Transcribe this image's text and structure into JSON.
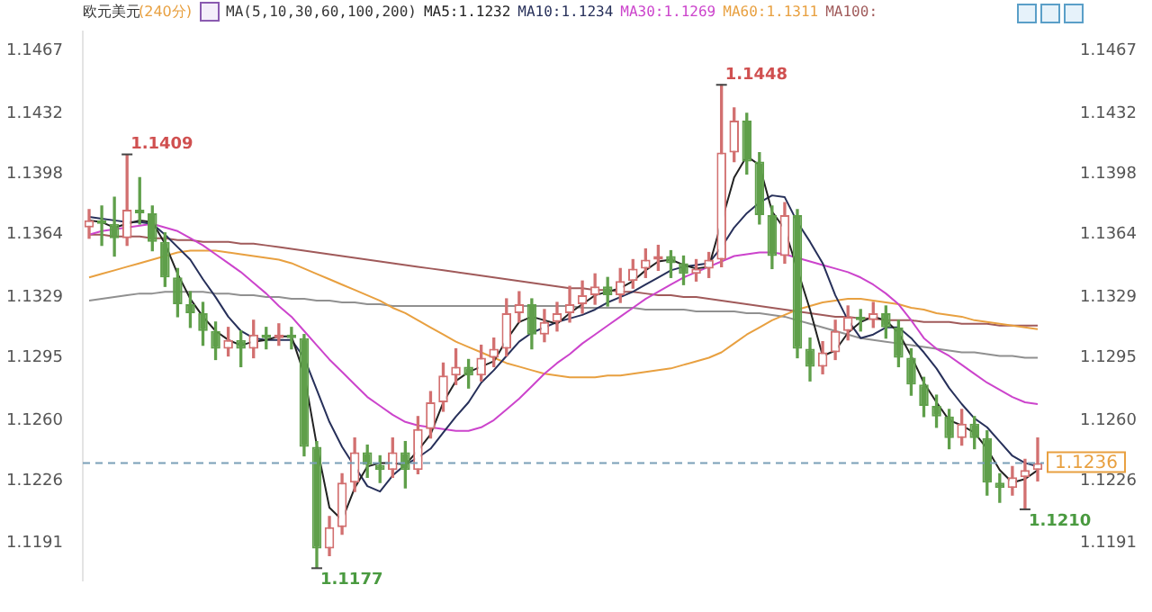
{
  "chart_data": {
    "type": "candlestick",
    "title": "欧元美元",
    "subtitle": "(240分)",
    "legend_title": "MA(5,10,30,60,100,200)",
    "legend": "top",
    "tick_labels": "y",
    "categories": [
      null,
      null,
      null,
      null,
      null,
      null,
      null,
      null,
      null,
      null,
      null,
      null,
      null,
      null,
      null,
      null,
      null,
      null,
      null,
      null,
      null,
      null,
      null,
      null,
      null,
      null,
      null,
      null,
      null,
      null,
      null,
      null,
      null,
      null,
      null,
      null,
      null,
      null,
      null,
      null,
      null,
      null,
      null,
      null,
      null,
      null,
      null,
      null,
      null,
      null,
      null,
      null,
      null,
      null,
      null,
      null,
      null,
      null,
      null,
      null,
      null,
      null,
      null,
      null,
      null,
      null,
      null,
      null,
      null,
      null,
      null,
      null,
      null,
      null,
      null,
      null
    ],
    "ohlc": [
      [
        1.1368,
        1.1378,
        1.1362,
        1.1372
      ],
      [
        1.1372,
        1.138,
        1.1358,
        1.137
      ],
      [
        1.137,
        1.1385,
        1.1352,
        1.1362
      ],
      [
        1.1362,
        1.1409,
        1.1358,
        1.1378
      ],
      [
        1.1378,
        1.1396,
        1.137,
        1.1376
      ],
      [
        1.1376,
        1.138,
        1.1355,
        1.136
      ],
      [
        1.136,
        1.1365,
        1.1335,
        1.134
      ],
      [
        1.134,
        1.1345,
        1.1318,
        1.1325
      ],
      [
        1.1325,
        1.1332,
        1.1312,
        1.132
      ],
      [
        1.132,
        1.1326,
        1.1302,
        1.131
      ],
      [
        1.131,
        1.1315,
        1.1294,
        1.13
      ],
      [
        1.13,
        1.1312,
        1.1296,
        1.1305
      ],
      [
        1.1305,
        1.131,
        1.129,
        1.13
      ],
      [
        1.13,
        1.1316,
        1.1295,
        1.1308
      ],
      [
        1.1308,
        1.1312,
        1.13,
        1.1306
      ],
      [
        1.1306,
        1.1314,
        1.1302,
        1.1308
      ],
      [
        1.1308,
        1.1312,
        1.13,
        1.1306
      ],
      [
        1.1306,
        1.1308,
        1.124,
        1.1245
      ],
      [
        1.1245,
        1.1248,
        1.1177,
        1.1188
      ],
      [
        1.1188,
        1.1206,
        1.1184,
        1.12
      ],
      [
        1.12,
        1.123,
        1.1196,
        1.1225
      ],
      [
        1.1225,
        1.125,
        1.122,
        1.1242
      ],
      [
        1.1242,
        1.1246,
        1.1228,
        1.1235
      ],
      [
        1.1235,
        1.124,
        1.1225,
        1.1232
      ],
      [
        1.1232,
        1.125,
        1.1228,
        1.1242
      ],
      [
        1.1242,
        1.1248,
        1.1222,
        1.1232
      ],
      [
        1.1232,
        1.1262,
        1.123,
        1.1255
      ],
      [
        1.1255,
        1.1276,
        1.125,
        1.127
      ],
      [
        1.127,
        1.1292,
        1.1265,
        1.1285
      ],
      [
        1.1285,
        1.13,
        1.128,
        1.129
      ],
      [
        1.129,
        1.1294,
        1.1278,
        1.1285
      ],
      [
        1.1285,
        1.1302,
        1.1282,
        1.1295
      ],
      [
        1.1295,
        1.1306,
        1.129,
        1.13
      ],
      [
        1.13,
        1.1328,
        1.1296,
        1.132
      ],
      [
        1.132,
        1.1332,
        1.1315,
        1.1325
      ],
      [
        1.1325,
        1.1328,
        1.13,
        1.1308
      ],
      [
        1.1308,
        1.1322,
        1.1304,
        1.1315
      ],
      [
        1.1315,
        1.1326,
        1.131,
        1.132
      ],
      [
        1.132,
        1.1335,
        1.1315,
        1.1325
      ],
      [
        1.1325,
        1.1338,
        1.132,
        1.133
      ],
      [
        1.133,
        1.1342,
        1.1325,
        1.1335
      ],
      [
        1.1335,
        1.134,
        1.1324,
        1.133
      ],
      [
        1.133,
        1.1345,
        1.1326,
        1.1338
      ],
      [
        1.1338,
        1.135,
        1.1334,
        1.1345
      ],
      [
        1.1345,
        1.1356,
        1.134,
        1.135
      ],
      [
        1.135,
        1.1358,
        1.1344,
        1.1352
      ],
      [
        1.1352,
        1.1355,
        1.134,
        1.1348
      ],
      [
        1.1348,
        1.1352,
        1.1336,
        1.1342
      ],
      [
        1.1342,
        1.135,
        1.1338,
        1.1345
      ],
      [
        1.1345,
        1.1354,
        1.134,
        1.135
      ],
      [
        1.135,
        1.1448,
        1.1346,
        1.141
      ],
      [
        1.141,
        1.1435,
        1.1405,
        1.1428
      ],
      [
        1.1428,
        1.1432,
        1.1398,
        1.1405
      ],
      [
        1.1405,
        1.141,
        1.137,
        1.1375
      ],
      [
        1.1375,
        1.138,
        1.1345,
        1.1352
      ],
      [
        1.1352,
        1.1382,
        1.1348,
        1.1375
      ],
      [
        1.1375,
        1.1378,
        1.1295,
        1.13
      ],
      [
        1.13,
        1.1306,
        1.1282,
        1.129
      ],
      [
        1.129,
        1.1304,
        1.1286,
        1.1298
      ],
      [
        1.1298,
        1.1316,
        1.1294,
        1.131
      ],
      [
        1.131,
        1.1324,
        1.1305,
        1.1318
      ],
      [
        1.1318,
        1.1322,
        1.131,
        1.1316
      ],
      [
        1.1316,
        1.1326,
        1.1312,
        1.132
      ],
      [
        1.132,
        1.1324,
        1.1306,
        1.1312
      ],
      [
        1.1312,
        1.1316,
        1.129,
        1.1295
      ],
      [
        1.1295,
        1.13,
        1.1274,
        1.128
      ],
      [
        1.128,
        1.1284,
        1.1262,
        1.1268
      ],
      [
        1.1268,
        1.1274,
        1.1256,
        1.1262
      ],
      [
        1.1262,
        1.1266,
        1.1244,
        1.125
      ],
      [
        1.125,
        1.1266,
        1.1246,
        1.1258
      ],
      [
        1.1258,
        1.1262,
        1.1244,
        1.125
      ],
      [
        1.125,
        1.1254,
        1.1218,
        1.1225
      ],
      [
        1.1225,
        1.123,
        1.1214,
        1.1222
      ],
      [
        1.1222,
        1.1234,
        1.1218,
        1.1228
      ],
      [
        1.1228,
        1.1238,
        1.121,
        1.1232
      ],
      [
        1.1232,
        1.125,
        1.1226,
        1.1236
      ]
    ],
    "series": [
      {
        "type": "line",
        "name": "MA5:1.1232",
        "color": "#222222",
        "values": [
          1.1372,
          1.1371,
          1.1368,
          1.137,
          1.1372,
          1.1371,
          1.1359,
          1.1342,
          1.1328,
          1.1318,
          1.131,
          1.1305,
          1.1302,
          1.1304,
          1.1305,
          1.1307,
          1.1307,
          1.1286,
          1.1246,
          1.1211,
          1.1204,
          1.1222,
          1.1234,
          1.1236,
          1.1236,
          1.1235,
          1.1243,
          1.1252,
          1.127,
          1.1282,
          1.1287,
          1.129,
          1.1293,
          1.1305,
          1.1315,
          1.1318,
          1.1316,
          1.1314,
          1.132,
          1.1325,
          1.133,
          1.1332,
          1.1334,
          1.1338,
          1.1344,
          1.1349,
          1.135,
          1.1347,
          1.1345,
          1.1346,
          null,
          1.1396,
          1.1408,
          1.1403,
          1.1377,
          1.1367,
          null,
          1.1322,
          1.1296,
          1.1299,
          1.1309,
          1.1315,
          1.1318,
          1.1316,
          1.1309,
          1.1296,
          1.1281,
          1.127,
          1.126,
          1.1257,
          1.1253,
          1.1244,
          1.1232,
          1.1225,
          1.1227,
          1.1232
        ]
      },
      {
        "type": "line",
        "name": "MA10:1.1234",
        "color": "#27305a",
        "values": [
          1.1374,
          1.1373,
          1.1372,
          1.1371,
          1.1371,
          1.137,
          1.1364,
          1.1357,
          1.135,
          1.1339,
          1.1329,
          1.1318,
          1.131,
          1.1306,
          1.1305,
          1.1305,
          1.1305,
          1.1295,
          1.1277,
          1.1259,
          1.1245,
          1.1234,
          1.1223,
          1.122,
          1.1229,
          1.1235,
          1.1239,
          1.1244,
          1.1253,
          1.1262,
          1.127,
          1.1281,
          1.1288,
          1.1296,
          1.1304,
          1.1309,
          1.1312,
          1.1315,
          1.1317,
          1.1319,
          1.1322,
          1.1326,
          1.1329,
          1.1332,
          1.1336,
          1.134,
          1.1344,
          1.1346,
          1.1347,
          1.1348,
          1.1357,
          1.1368,
          1.1376,
          1.1382,
          1.1386,
          1.1385,
          1.1371,
          1.136,
          1.1348,
          1.133,
          1.1316,
          1.1306,
          1.1308,
          1.1312,
          1.1312,
          1.1306,
          1.1298,
          1.1289,
          1.1278,
          1.1269,
          1.1261,
          1.1256,
          1.1248,
          1.124,
          1.1236,
          1.1234
        ]
      },
      {
        "type": "line",
        "name": "MA30:1.1269",
        "color": "#cc44cc",
        "values": [
          1.1364,
          1.1366,
          1.1367,
          1.1368,
          1.1369,
          1.137,
          1.1368,
          1.1366,
          1.1362,
          1.1358,
          1.1353,
          1.1348,
          1.1343,
          1.1337,
          1.1331,
          1.1324,
          1.1318,
          1.131,
          1.1302,
          1.1294,
          1.1287,
          1.128,
          1.1273,
          1.1268,
          1.1263,
          1.1259,
          1.1257,
          1.1256,
          1.1255,
          1.1254,
          1.1254,
          1.1256,
          1.126,
          1.1266,
          1.1272,
          1.1279,
          1.1286,
          1.1292,
          1.1297,
          1.1303,
          1.1308,
          1.1313,
          1.1318,
          1.1323,
          1.1328,
          1.1332,
          1.1336,
          1.134,
          1.1343,
          1.1346,
          1.1349,
          1.1352,
          1.1353,
          1.1354,
          1.1354,
          1.1353,
          1.1351,
          1.1349,
          1.1347,
          1.1345,
          1.1343,
          1.134,
          1.1336,
          1.1331,
          1.1325,
          1.1316,
          1.1306,
          1.13,
          1.1296,
          1.1291,
          1.1286,
          1.1281,
          1.1277,
          1.1273,
          1.127,
          1.1269
        ]
      },
      {
        "type": "line",
        "name": "MA60:1.1311",
        "color": "#e8a040",
        "values": [
          1.134,
          1.1342,
          1.1344,
          1.1346,
          1.1348,
          1.135,
          1.1352,
          1.1354,
          1.1355,
          1.1355,
          1.1355,
          1.1354,
          1.1353,
          1.1352,
          1.1351,
          1.135,
          1.1348,
          1.1345,
          1.1342,
          1.1339,
          1.1336,
          1.1333,
          1.133,
          1.1327,
          1.1323,
          1.132,
          1.1316,
          1.1312,
          1.1308,
          1.1304,
          1.1301,
          1.1298,
          1.1295,
          1.1292,
          1.129,
          1.1288,
          1.1286,
          1.1285,
          1.1284,
          1.1284,
          1.1284,
          1.1285,
          1.1285,
          1.1286,
          1.1287,
          1.1288,
          1.1289,
          1.1291,
          1.1293,
          1.1295,
          1.1298,
          1.1303,
          1.1308,
          1.1312,
          1.1316,
          1.1319,
          1.1322,
          1.1324,
          1.1326,
          1.1327,
          1.1328,
          1.1328,
          1.1327,
          1.1326,
          1.1325,
          1.1323,
          1.1322,
          1.132,
          1.1319,
          1.1318,
          1.1316,
          1.1315,
          1.1314,
          1.1313,
          1.1312,
          1.1311
        ]
      },
      {
        "type": "line",
        "name": "MA100:",
        "color": "#a05a5a",
        "values": [
          1.1364,
          1.1364,
          1.1363,
          1.1363,
          1.1363,
          1.1362,
          1.1362,
          1.1361,
          1.1361,
          1.136,
          1.136,
          1.136,
          1.1359,
          1.1359,
          1.1358,
          1.1357,
          1.1356,
          1.1355,
          1.1354,
          1.1353,
          1.1352,
          1.1351,
          1.135,
          1.1349,
          1.1348,
          1.1347,
          1.1346,
          1.1345,
          1.1344,
          1.1343,
          1.1342,
          1.1341,
          1.134,
          1.1339,
          1.1338,
          1.1337,
          1.1336,
          1.1335,
          1.1334,
          1.1334,
          1.1333,
          1.1333,
          1.1332,
          1.1332,
          1.1331,
          1.133,
          1.133,
          1.1329,
          1.1329,
          1.1328,
          1.1327,
          1.1326,
          1.1325,
          1.1324,
          1.1323,
          1.1322,
          1.1321,
          1.132,
          1.1319,
          1.1318,
          1.1318,
          1.1317,
          1.1317,
          1.1316,
          1.1316,
          1.1316,
          1.1315,
          1.1315,
          1.1315,
          1.1314,
          1.1314,
          1.1314,
          1.1313,
          1.1313,
          1.1313,
          1.1313
        ]
      },
      {
        "type": "line",
        "color": "#909090",
        "values": [
          1.1327,
          1.1328,
          1.1329,
          1.133,
          1.1331,
          1.1331,
          1.1332,
          1.1332,
          1.1332,
          1.1332,
          1.1331,
          1.1331,
          1.133,
          1.133,
          1.1329,
          1.1329,
          1.1328,
          1.1328,
          1.1327,
          1.1327,
          1.1326,
          1.1326,
          1.1325,
          1.1325,
          1.1324,
          1.1324,
          1.1324,
          1.1324,
          1.1324,
          1.1324,
          1.1324,
          1.1324,
          1.1324,
          1.1324,
          1.1324,
          1.1324,
          1.1324,
          1.1324,
          1.1324,
          1.1323,
          1.1323,
          1.1323,
          1.1323,
          1.1323,
          1.1322,
          1.1322,
          1.1322,
          1.1322,
          1.1321,
          1.1321,
          1.1321,
          1.1321,
          1.132,
          1.132,
          1.1319,
          1.1318,
          1.1316,
          1.1314,
          1.1312,
          1.131,
          1.1308,
          1.1306,
          1.1305,
          1.1304,
          1.1303,
          1.1302,
          1.1301,
          1.13,
          1.1299,
          1.1298,
          1.1298,
          1.1297,
          1.1296,
          1.1296,
          1.1295,
          1.1295
        ]
      }
    ],
    "ylim": [
      1.117,
      1.1478
    ],
    "yticks": [
      1.1467,
      1.1432,
      1.1398,
      1.1364,
      1.1329,
      1.1295,
      {
        "value": 1.126,
        "label": "1.1260"
      },
      1.1226,
      1.1191
    ],
    "y2lim": [
      1.117,
      1.1478
    ],
    "y2ticks": [
      1.1467,
      1.1432,
      1.1398,
      1.1364,
      1.1329,
      1.1295,
      {
        "value": 1.126,
        "label": "1.1260"
      },
      1.1226,
      1.1191
    ],
    "ref_lines": [
      {
        "axis": "y",
        "value": 1.1236,
        "label": "1.1236",
        "color": "#7a9fb8",
        "line_style": "dashed"
      }
    ],
    "annotations": [
      "1.1409",
      "1.1448",
      "1.1177",
      "1.1210"
    ]
  }
}
